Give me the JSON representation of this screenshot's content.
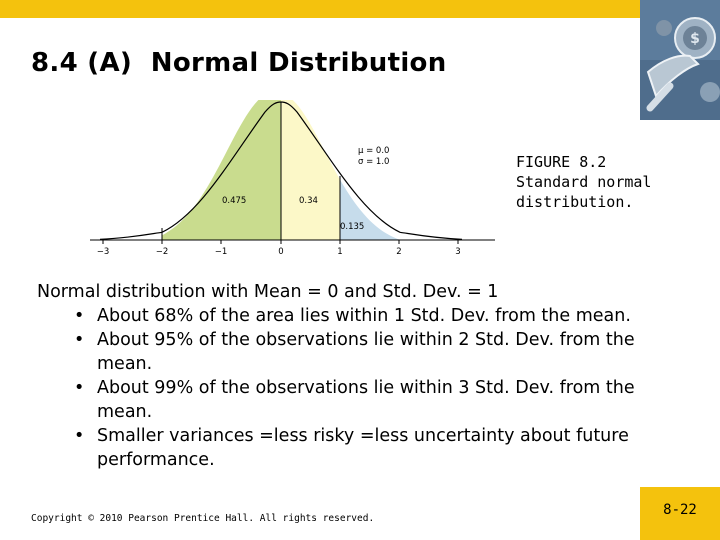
{
  "slide": {
    "title": "8.4 (A)  Normal Distribution",
    "page_number": "8-22",
    "copyright": "Copyright © 2010 Pearson Prentice Hall. All rights reserved."
  },
  "figure": {
    "params": [
      "μ = 0.0",
      "σ = 1.0"
    ],
    "area_labels": [
      "0.475",
      "0.34",
      "0.135"
    ],
    "x_ticks": [
      "−3",
      "−2",
      "−1",
      "0",
      "1",
      "2",
      "3"
    ],
    "caption": [
      "FIGURE 8.2",
      "Standard normal",
      "distribution."
    ]
  },
  "body": {
    "intro": "Normal distribution with Mean = 0 and Std. Dev. = 1",
    "bullets": [
      "About 68% of the area lies within 1 Std. Dev. from the mean.",
      "About 95% of the observations lie within 2 Std. Dev. from the mean.",
      "About 99% of the observations lie within 3 Std. Dev. from the mean.",
      "Smaller variances =less risky =less uncertainty about future performance."
    ]
  },
  "colors": {
    "accent_yellow": "#f4c20d",
    "region_green": "#c9dc8e",
    "region_cream": "#fcf8c8",
    "region_blue": "#c6dceb"
  },
  "icons": {
    "header_image": "wrench-coins-image"
  }
}
